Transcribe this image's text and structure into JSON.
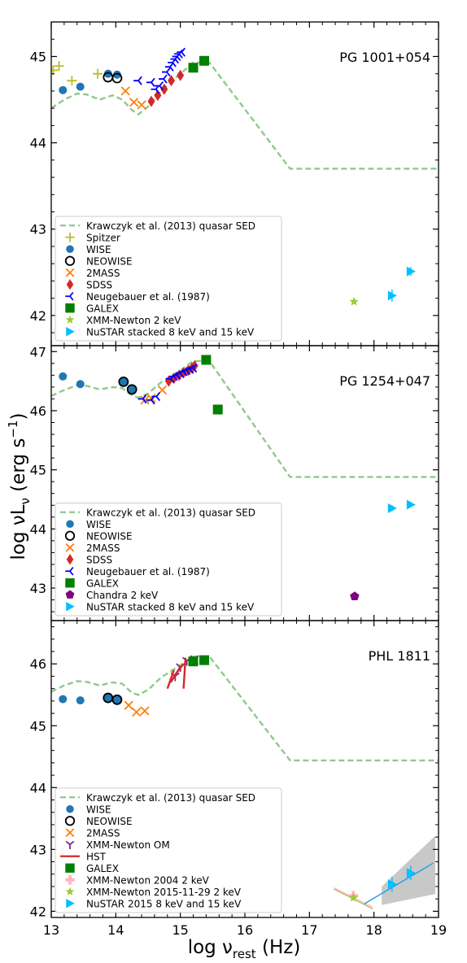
{
  "figure": {
    "ylabel_main": "log νL",
    "ylabel_sub": "ν",
    "ylabel_unit": " (erg s",
    "ylabel_exp": "−1",
    "ylabel_close": ")",
    "xlabel_main": "log ν",
    "xlabel_sub": "rest",
    "xlabel_unit": " (Hz)",
    "x_ticks": [
      "13",
      "14",
      "15",
      "16",
      "17",
      "18",
      "19"
    ]
  },
  "chart_data": [
    {
      "type": "scatter",
      "title": "PG 1001+054",
      "xlim": [
        13,
        19
      ],
      "ylim": [
        41.65,
        45.4
      ],
      "y_ticks": [
        42,
        43,
        44,
        45
      ],
      "grid": false,
      "legend_position": "bottom-left",
      "series": [
        {
          "name": "Krawczyk et al. (2013) quasar SED",
          "kind": "dashed-line",
          "color": "#8fc98b",
          "x": [
            13.0,
            13.2,
            13.4,
            13.55,
            13.75,
            13.95,
            14.1,
            14.25,
            14.35,
            14.5,
            14.7,
            15.0,
            15.2,
            15.45,
            16.7,
            19.0
          ],
          "y": [
            44.4,
            44.5,
            44.57,
            44.56,
            44.5,
            44.55,
            44.5,
            44.38,
            44.33,
            44.42,
            44.6,
            44.8,
            44.93,
            44.93,
            43.7,
            43.7
          ]
        },
        {
          "name": "Spitzer",
          "kind": "marker",
          "marker": "plus",
          "color": "#bcbd22",
          "x": [
            13.03,
            13.12,
            13.32,
            13.72
          ],
          "y": [
            44.84,
            44.89,
            44.72,
            44.8
          ]
        },
        {
          "name": "WISE",
          "kind": "marker",
          "marker": "circle",
          "color": "#1f77b4",
          "x": [
            13.18,
            13.45,
            13.88,
            14.02
          ],
          "y": [
            44.61,
            44.65,
            44.8,
            44.79
          ]
        },
        {
          "name": "NEOWISE",
          "kind": "marker",
          "marker": "open-circle",
          "color": "#000000",
          "x": [
            13.88,
            14.02
          ],
          "y": [
            44.76,
            44.75
          ]
        },
        {
          "name": "2MASS",
          "kind": "marker",
          "marker": "x",
          "color": "#ff7f0e",
          "x": [
            14.15,
            14.28,
            14.4
          ],
          "y": [
            44.6,
            44.47,
            44.44
          ]
        },
        {
          "name": "SDSS",
          "kind": "marker",
          "marker": "thin-diamond",
          "color": "#d62728",
          "x": [
            14.55,
            14.65,
            14.75,
            14.86,
            15.0
          ],
          "y": [
            44.48,
            44.55,
            44.62,
            44.72,
            44.78
          ]
        },
        {
          "name": "Neugebauer et al. (1987)",
          "kind": "marker",
          "marker": "tri-left",
          "color": "#0000ff",
          "x": [
            14.35,
            14.55,
            14.62,
            14.68,
            14.74,
            14.79,
            14.84,
            14.88,
            14.92,
            14.95,
            14.98,
            15.02
          ],
          "y": [
            44.72,
            44.7,
            44.62,
            44.66,
            44.74,
            44.82,
            44.88,
            44.93,
            44.97,
            45.0,
            45.03,
            45.05
          ]
        },
        {
          "name": "GALEX",
          "kind": "marker",
          "marker": "square",
          "color": "#008000",
          "x": [
            15.2,
            15.37
          ],
          "y": [
            44.87,
            44.95
          ]
        },
        {
          "name": "XMM-Newton 2 keV",
          "kind": "marker",
          "marker": "star",
          "color": "#9acd32",
          "x": [
            17.69
          ],
          "y": [
            42.16
          ]
        },
        {
          "name": "NuSTAR stacked 8 keV and 15 keV",
          "kind": "marker",
          "marker": "triangle-right",
          "color": "#00bfff",
          "x": [
            18.28,
            18.57
          ],
          "y": [
            42.23,
            42.51
          ],
          "yerr": [
            0.07,
            0.05
          ],
          "xerr": [
            0.06,
            0.05
          ]
        }
      ]
    },
    {
      "type": "scatter",
      "title": "PG 1254+047",
      "xlim": [
        13,
        19
      ],
      "ylim": [
        42.45,
        47.1
      ],
      "y_ticks": [
        43,
        44,
        45,
        46,
        47
      ],
      "grid": false,
      "legend_position": "bottom-left",
      "series": [
        {
          "name": "Krawczyk et al. (2013) quasar SED",
          "kind": "dashed-line",
          "color": "#8fc98b",
          "x": [
            13.0,
            13.2,
            13.4,
            13.55,
            13.75,
            13.95,
            14.1,
            14.25,
            14.35,
            14.5,
            14.7,
            15.0,
            15.2,
            15.45,
            16.7,
            19.0
          ],
          "y": [
            46.25,
            46.35,
            46.43,
            46.42,
            46.36,
            46.4,
            46.38,
            46.26,
            46.22,
            46.29,
            46.48,
            46.68,
            46.84,
            46.84,
            44.88,
            44.88
          ]
        },
        {
          "name": "WISE",
          "kind": "marker",
          "marker": "circle",
          "color": "#1f77b4",
          "x": [
            13.18,
            13.45,
            14.12,
            14.25
          ],
          "y": [
            46.58,
            46.45,
            46.49,
            46.36
          ]
        },
        {
          "name": "NEOWISE",
          "kind": "marker",
          "marker": "open-circle",
          "color": "#000000",
          "x": [
            14.12,
            14.25
          ],
          "y": [
            46.49,
            46.36
          ]
        },
        {
          "name": "2MASS",
          "kind": "marker",
          "marker": "x",
          "color": "#ff7f0e",
          "x": [
            14.45,
            14.55,
            14.72
          ],
          "y": [
            46.18,
            46.21,
            46.35
          ]
        },
        {
          "name": "SDSS",
          "kind": "marker",
          "marker": "thin-diamond",
          "color": "#d62728",
          "x": [
            14.82,
            14.9,
            14.98,
            15.05,
            15.12,
            15.18,
            15.22
          ],
          "y": [
            46.5,
            46.55,
            46.6,
            46.64,
            46.68,
            46.72,
            46.76
          ]
        },
        {
          "name": "Neugebauer et al. (1987)",
          "kind": "marker",
          "marker": "tri-left",
          "color": "#0000ff",
          "x": [
            14.42,
            14.55,
            14.63,
            14.85,
            14.9,
            14.95,
            15.0,
            15.05,
            15.1,
            15.15,
            15.2
          ],
          "y": [
            46.2,
            46.18,
            46.24,
            46.54,
            46.58,
            46.6,
            46.63,
            46.66,
            46.68,
            46.7,
            46.72
          ]
        },
        {
          "name": "GALEX",
          "kind": "marker",
          "marker": "square",
          "color": "#008000",
          "x": [
            15.4,
            15.58
          ],
          "y": [
            46.86,
            46.02
          ]
        },
        {
          "name": "Chandra 2 keV",
          "kind": "marker",
          "marker": "pentagon",
          "color": "#800080",
          "x": [
            17.7
          ],
          "y": [
            42.86
          ]
        },
        {
          "name": "NuSTAR stacked 8 keV and 15 keV",
          "kind": "marker",
          "marker": "triangle-right",
          "color": "#00bfff",
          "x": [
            18.28,
            18.57
          ],
          "y": [
            44.35,
            44.41
          ],
          "yerr": [
            0.05,
            0.04
          ],
          "xerr": [
            0.06,
            0.05
          ]
        }
      ]
    },
    {
      "type": "scatter",
      "title": "PHL 1811",
      "xlim": [
        13,
        19
      ],
      "ylim": [
        41.9,
        46.7
      ],
      "y_ticks": [
        42,
        43,
        44,
        45,
        46
      ],
      "grid": false,
      "legend_position": "bottom-left",
      "series": [
        {
          "name": "Krawczyk et al. (2013) quasar SED",
          "kind": "dashed-line",
          "color": "#8fc98b",
          "x": [
            13.0,
            13.2,
            13.4,
            13.55,
            13.75,
            13.95,
            14.1,
            14.25,
            14.35,
            14.5,
            14.7,
            15.0,
            15.2,
            15.45,
            16.7,
            19.0
          ],
          "y": [
            45.55,
            45.65,
            45.72,
            45.71,
            45.65,
            45.7,
            45.68,
            45.53,
            45.5,
            45.58,
            45.78,
            45.98,
            46.12,
            46.12,
            44.44,
            44.44
          ]
        },
        {
          "name": "WISE",
          "kind": "marker",
          "marker": "circle",
          "color": "#1f77b4",
          "x": [
            13.18,
            13.45,
            13.88,
            14.02
          ],
          "y": [
            45.43,
            45.41,
            45.45,
            45.42
          ]
        },
        {
          "name": "NEOWISE",
          "kind": "marker",
          "marker": "open-circle",
          "color": "#000000",
          "x": [
            13.88,
            14.02
          ],
          "y": [
            45.45,
            45.42
          ]
        },
        {
          "name": "2MASS",
          "kind": "marker",
          "marker": "x",
          "color": "#ff7f0e",
          "x": [
            14.2,
            14.32,
            14.45
          ],
          "y": [
            45.33,
            45.22,
            45.24
          ]
        },
        {
          "name": "XMM-Newton OM",
          "kind": "marker",
          "marker": "tri-down",
          "color": "#7b2d8e",
          "x": [
            14.92,
            15.0,
            15.1,
            15.22
          ],
          "y": [
            45.8,
            45.95,
            46.05,
            46.08
          ]
        },
        {
          "name": "HST",
          "kind": "segments",
          "color": "#d62728",
          "segments": [
            [
              14.8,
              45.6,
              14.9,
              45.9
            ],
            [
              14.85,
              45.7,
              15.0,
              45.95
            ],
            [
              14.9,
              45.8,
              15.05,
              46.0
            ],
            [
              15.05,
              45.6,
              15.08,
              46.1
            ]
          ]
        },
        {
          "name": "GALEX",
          "kind": "marker",
          "marker": "square",
          "color": "#008000",
          "x": [
            15.2,
            15.37
          ],
          "y": [
            46.04,
            46.06
          ]
        },
        {
          "name": "XMM-Newton 2004 2 keV",
          "kind": "marker",
          "marker": "plus-thick",
          "color": "#ffb6c1",
          "x": [
            17.68
          ],
          "y": [
            42.25
          ]
        },
        {
          "name": "XMM-Newton 2015-11-29 2 keV",
          "kind": "marker",
          "marker": "star",
          "color": "#9acd32",
          "x": [
            17.68
          ],
          "y": [
            42.22
          ]
        },
        {
          "name": "NuSTAR 2015 8 keV and 15 keV",
          "kind": "marker",
          "marker": "triangle-right",
          "color": "#00bfff",
          "x": [
            18.28,
            18.57
          ],
          "y": [
            42.44,
            42.62
          ],
          "yerr": [
            0.12,
            0.12
          ],
          "xerr": [
            0.06,
            0.05
          ]
        }
      ]
    }
  ]
}
